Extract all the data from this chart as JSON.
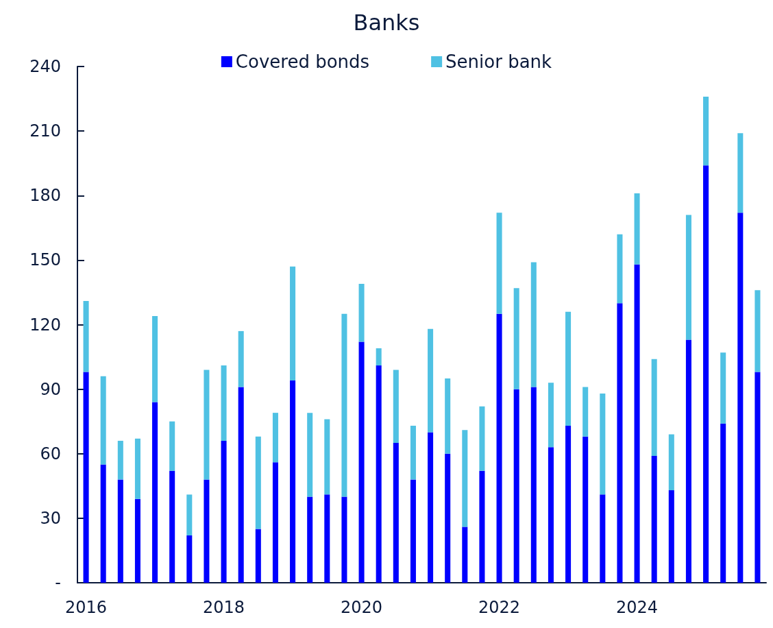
{
  "chart_data": {
    "type": "bar",
    "title": "Banks",
    "stacked": true,
    "legend": "top",
    "grid": false,
    "categories": [
      "2016",
      null,
      null,
      null,
      null,
      null,
      null,
      null,
      "2018",
      null,
      null,
      null,
      null,
      null,
      null,
      null,
      "2020",
      null,
      null,
      null,
      null,
      null,
      null,
      null,
      "2022",
      null,
      null,
      null,
      null,
      null,
      null,
      null,
      "2024",
      null,
      null,
      null,
      null,
      null,
      null,
      null
    ],
    "series": [
      {
        "name": "Covered bonds",
        "color": "#0000ff",
        "values": [
          98,
          55,
          48,
          39,
          84,
          52,
          22,
          48,
          66,
          91,
          25,
          56,
          94,
          40,
          41,
          40,
          112,
          101,
          65,
          48,
          70,
          60,
          26,
          52,
          125,
          90,
          91,
          63,
          73,
          68,
          41,
          130,
          148,
          59,
          43,
          113,
          194,
          74,
          172,
          98
        ]
      },
      {
        "name": "Senior bank",
        "color": "#4fc1e3",
        "values": [
          33,
          41,
          18,
          28,
          40,
          23,
          19,
          51,
          35,
          26,
          43,
          23,
          53,
          39,
          35,
          85,
          27,
          8,
          34,
          25,
          48,
          35,
          45,
          30,
          47,
          47,
          58,
          30,
          53,
          23,
          47,
          32,
          33,
          45,
          26,
          58,
          32,
          33,
          37,
          38
        ]
      }
    ],
    "ylim": [
      0,
      240
    ],
    "yticks": [
      {
        "value": 0,
        "label": "-"
      },
      30,
      60,
      90,
      120,
      150,
      180,
      210,
      240
    ]
  }
}
